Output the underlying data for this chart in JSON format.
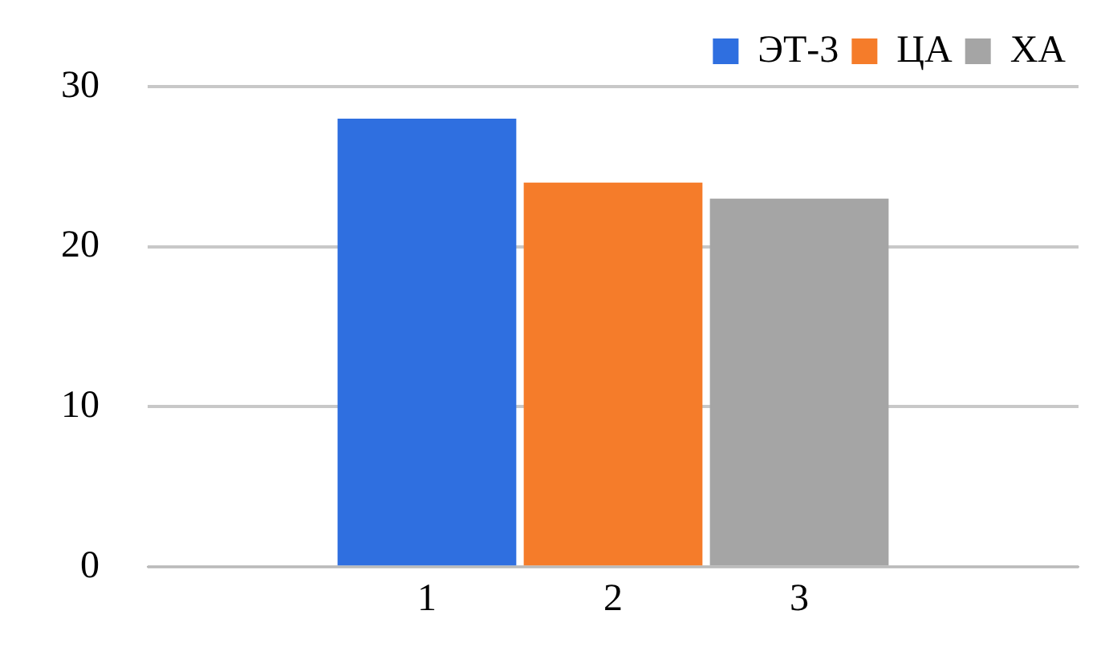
{
  "chart_data": {
    "type": "bar",
    "categories": [
      null,
      "1",
      "2",
      "3",
      null
    ],
    "series": [
      {
        "name": "ЭТ-3",
        "color": "#2f6fe0",
        "values": [
          null,
          28,
          null,
          null,
          null
        ]
      },
      {
        "name": "ЦА",
        "color": "#f57c2a",
        "values": [
          null,
          null,
          24,
          null,
          null
        ]
      },
      {
        "name": "ХА",
        "color": "#a5a5a5",
        "values": [
          null,
          null,
          null,
          23,
          null
        ]
      }
    ],
    "ylim": [
      0,
      30
    ],
    "yticks": [
      0,
      10,
      20,
      30
    ],
    "grid": "y",
    "legend": "top right"
  }
}
